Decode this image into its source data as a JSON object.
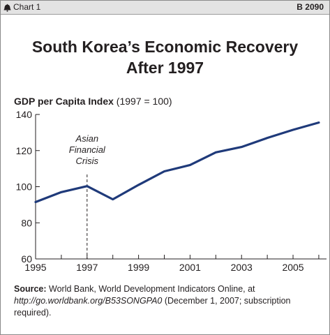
{
  "header": {
    "chart_label": "Chart 1",
    "report_number": "B 2090",
    "icon": "liberty-bell-icon"
  },
  "title_line1": "South Korea’s Economic Recovery",
  "title_line2": "After 1997",
  "axis_title_bold": "GDP per Capita Index",
  "axis_title_rest": " (1997 = 100)",
  "source": {
    "label": "Source:",
    "text1": " World Bank, World Development Indicators Online, at ",
    "url": "http://go.worldbank.org/B53SONGPA0",
    "text2": " (December 1, 2007; subscription required)."
  },
  "chart_data": {
    "type": "line",
    "x": [
      1995,
      1996,
      1997,
      1998,
      1999,
      2000,
      2001,
      2002,
      2003,
      2004,
      2005,
      2006
    ],
    "series": [
      {
        "values": [
          91.5,
          97,
          100.3,
          93,
          101,
          108.5,
          112,
          119,
          122,
          127,
          131.5,
          135.5
        ],
        "color": "#1f3a7a"
      }
    ],
    "xlim": [
      1995,
      2006.3
    ],
    "ylim": [
      60,
      140
    ],
    "xticks": [
      1995,
      1997,
      1999,
      2001,
      2003,
      2005
    ],
    "yticks": [
      60,
      80,
      100,
      120,
      140
    ],
    "annotation": {
      "x": 1997,
      "lines": [
        "Asian",
        "Financial",
        "Crisis"
      ]
    },
    "grid": false
  }
}
